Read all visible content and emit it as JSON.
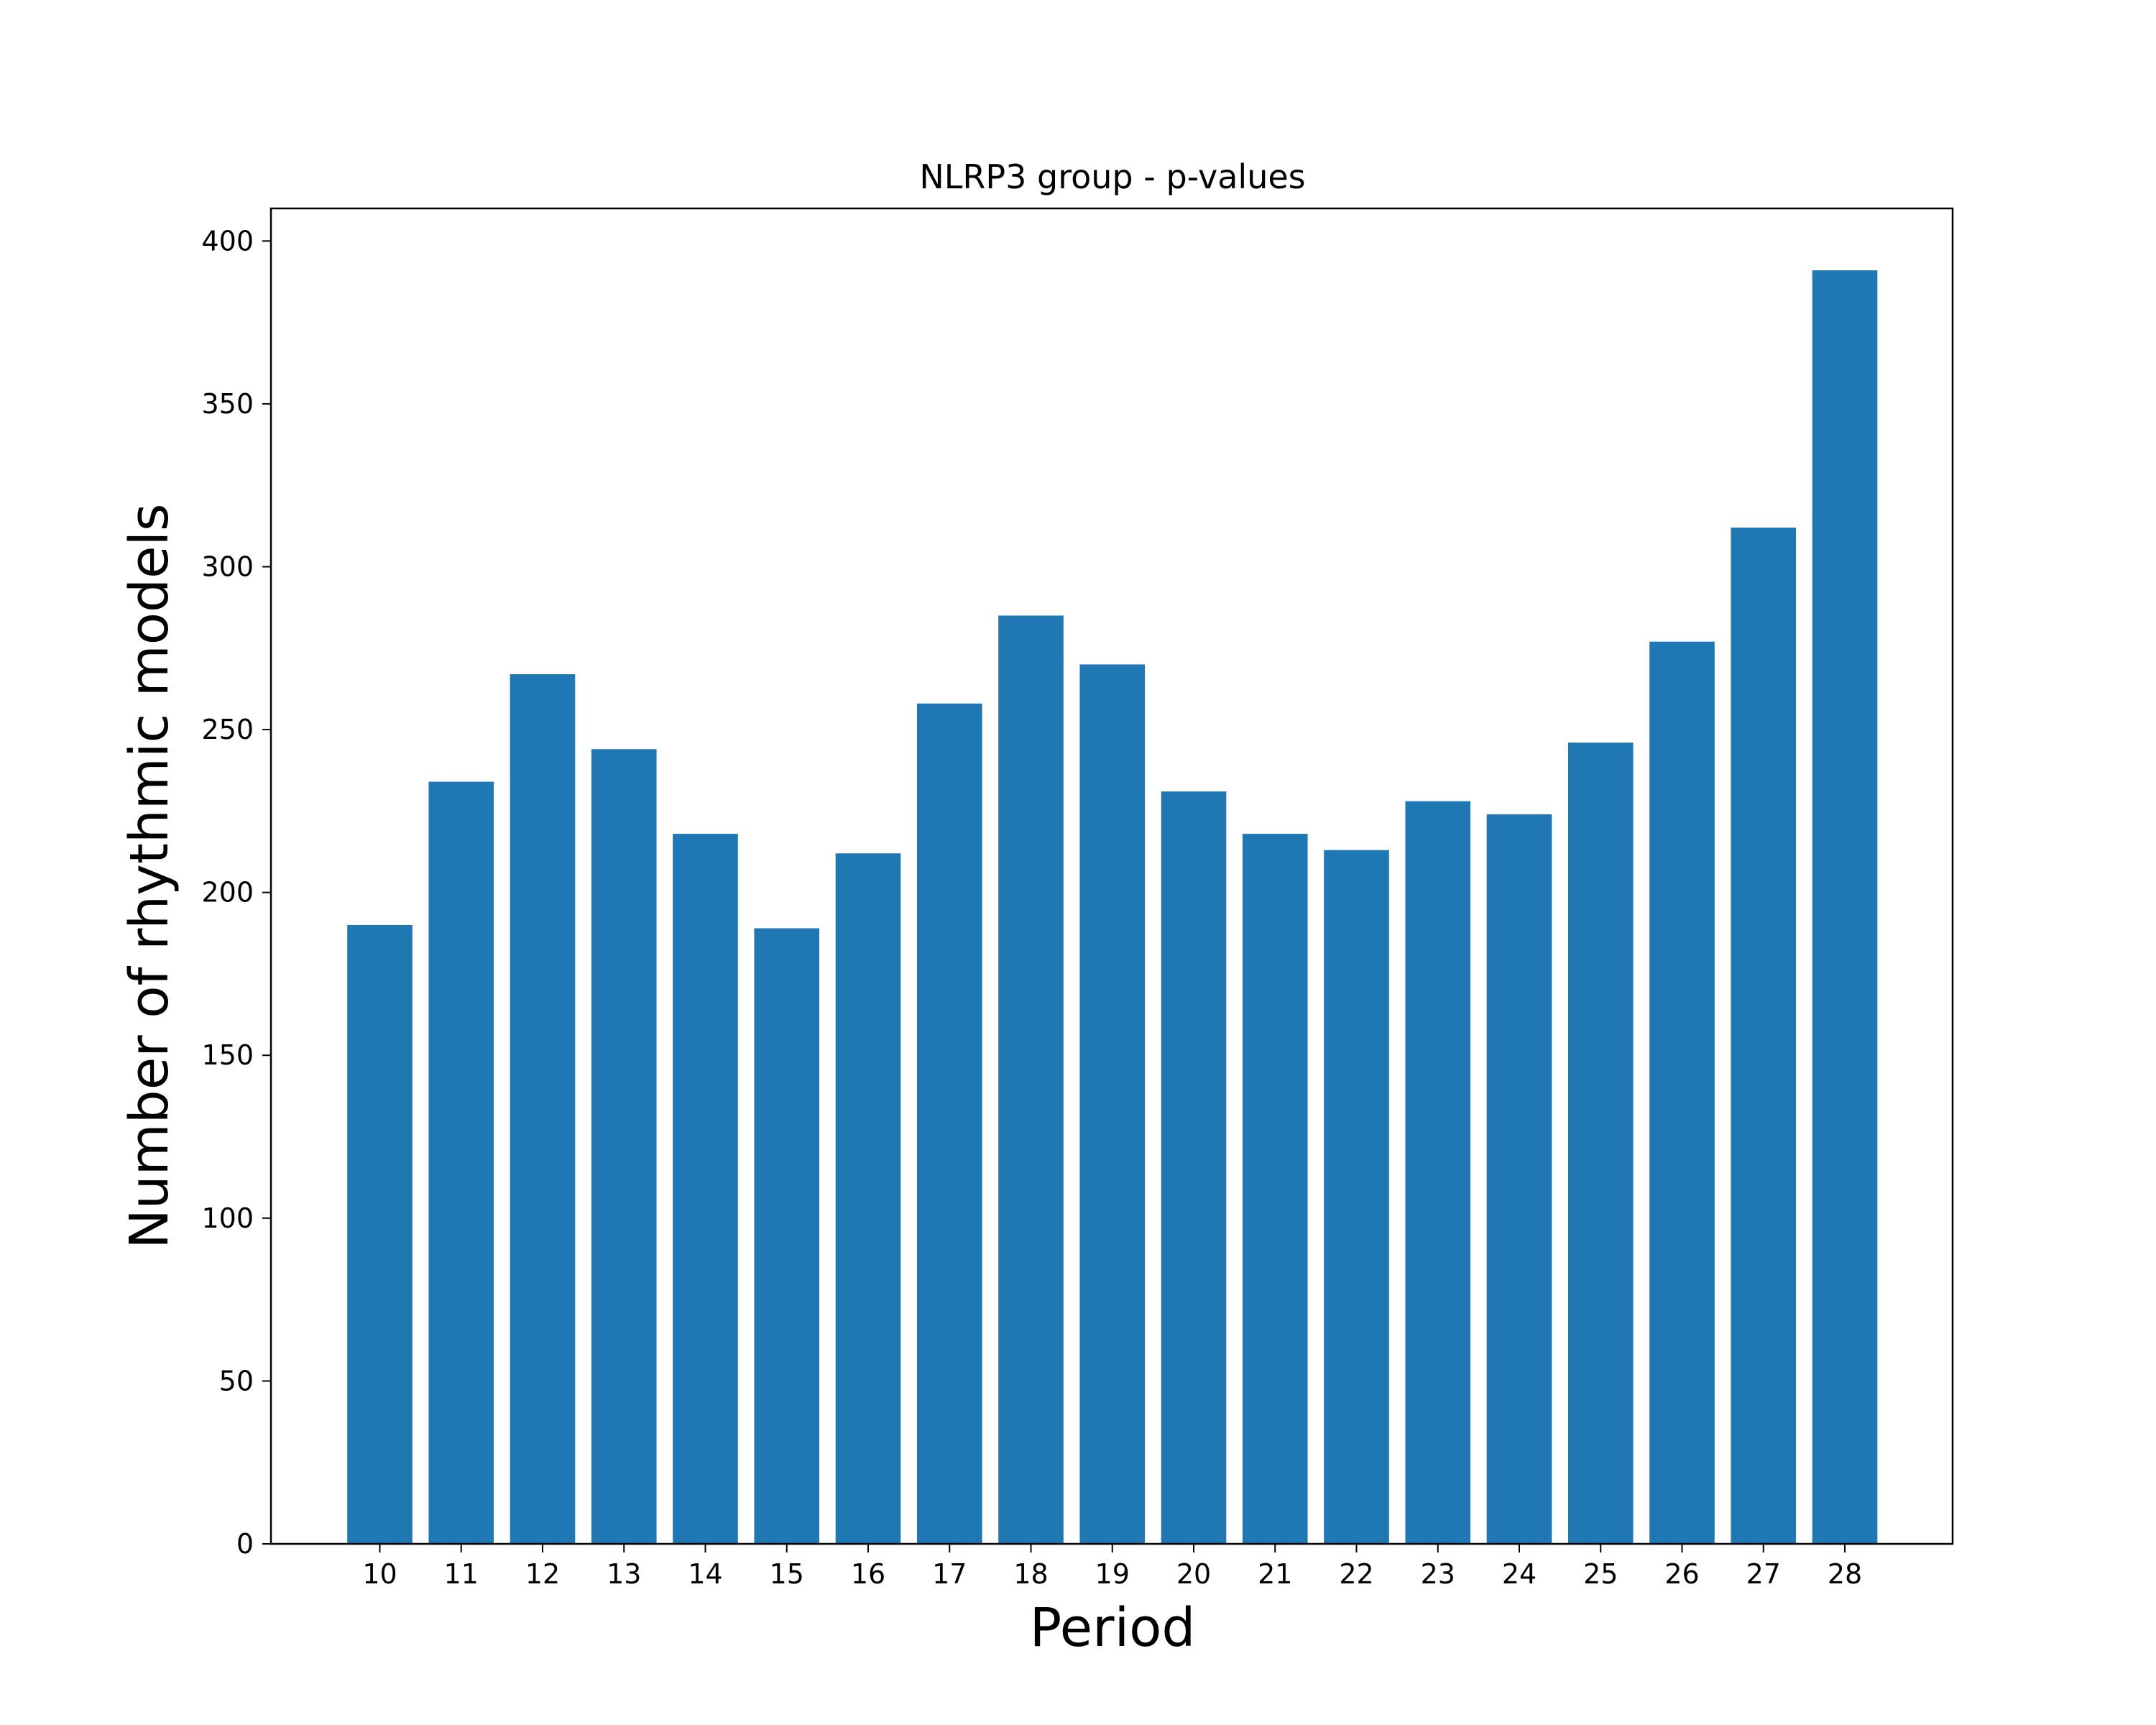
{
  "chart_data": {
    "type": "bar",
    "title": "NLRP3 group - p-values",
    "xlabel": "Period",
    "ylabel": "Number of rhythmic models",
    "categories": [
      "10",
      "11",
      "12",
      "13",
      "14",
      "15",
      "16",
      "17",
      "18",
      "19",
      "20",
      "21",
      "22",
      "23",
      "24",
      "25",
      "26",
      "27",
      "28"
    ],
    "values": [
      190,
      234,
      267,
      244,
      218,
      189,
      212,
      258,
      285,
      270,
      231,
      218,
      213,
      228,
      224,
      246,
      277,
      312,
      391
    ],
    "ylim": [
      0,
      410
    ],
    "yticks": [
      0,
      50,
      100,
      150,
      200,
      250,
      300,
      350,
      400
    ],
    "bar_color": "#1f77b4",
    "grid": false,
    "legend": "none"
  }
}
